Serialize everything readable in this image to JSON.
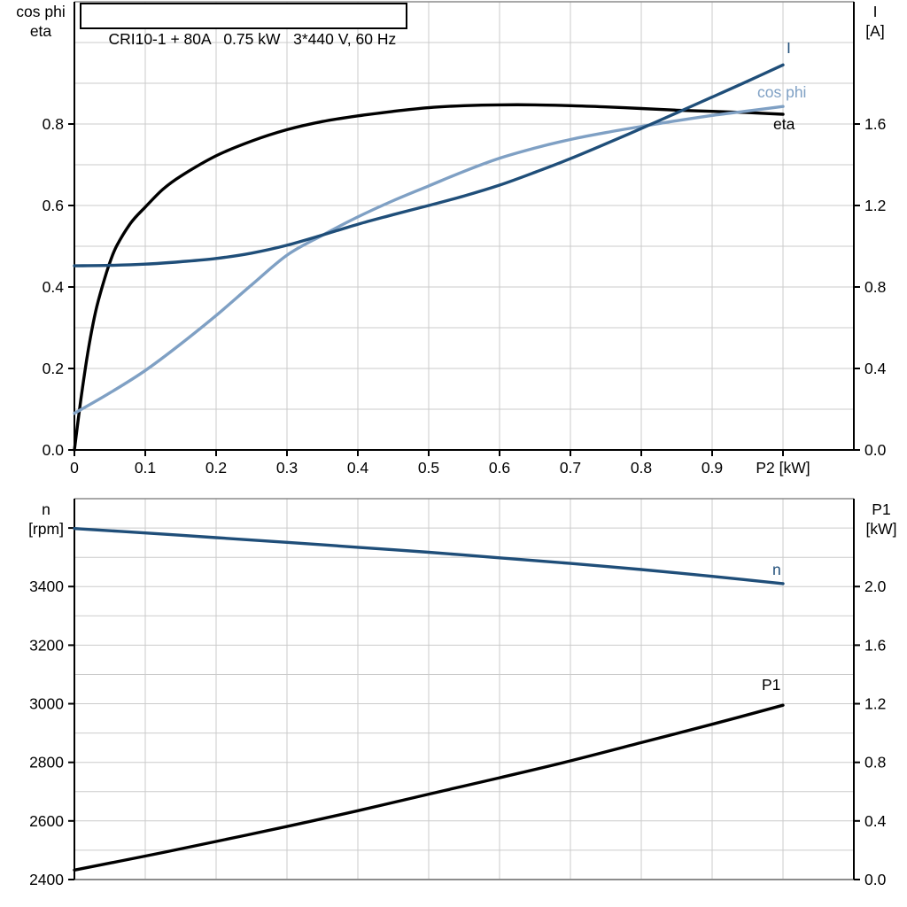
{
  "title": {
    "text": "CRI10-1 + 80A   0.75 kW   3*440 V, 60 Hz"
  },
  "colors": {
    "curve_dark_blue": "#1F4E79",
    "curve_light_blue": "#7FA0C4",
    "curve_black": "#000000",
    "grid": "#CBCBCB",
    "frame": "#8C8C8C",
    "axis": "#000000"
  },
  "chart_data": [
    {
      "type": "line",
      "id": "motor-efficiency-chart",
      "title": "CRI10-1 + 80A   0.75 kW   3*440 V, 60 Hz",
      "xlabel": "P2 [kW]",
      "x_axis": {
        "min": 0,
        "max": 1.1,
        "grid_step": 0.1,
        "ticks": [
          {
            "v": 0,
            "t": "0"
          },
          {
            "v": 0.1,
            "t": "0.1"
          },
          {
            "v": 0.2,
            "t": "0.2"
          },
          {
            "v": 0.3,
            "t": "0.3"
          },
          {
            "v": 0.4,
            "t": "0.4"
          },
          {
            "v": 0.5,
            "t": "0.5"
          },
          {
            "v": 0.6,
            "t": "0.6"
          },
          {
            "v": 0.7,
            "t": "0.7"
          },
          {
            "v": 0.8,
            "t": "0.8"
          },
          {
            "v": 0.9,
            "t": "0.9"
          },
          {
            "v": 1.0,
            "t": "P2 [kW]"
          }
        ]
      },
      "left_axis": {
        "title_lines": [
          "cos phi",
          "eta"
        ],
        "min": 0,
        "max": 1.1,
        "grid_step": 0.1,
        "ticks": [
          {
            "v": 0.0,
            "t": "0.0"
          },
          {
            "v": 0.2,
            "t": "0.2"
          },
          {
            "v": 0.4,
            "t": "0.4"
          },
          {
            "v": 0.6,
            "t": "0.6"
          },
          {
            "v": 0.8,
            "t": "0.8"
          }
        ]
      },
      "right_axis": {
        "title_lines": [
          "I",
          "[A]"
        ],
        "min": 0,
        "max": 2.2,
        "ticks": [
          {
            "v": 0.0,
            "t": "0.0"
          },
          {
            "v": 0.4,
            "t": "0.4"
          },
          {
            "v": 0.8,
            "t": "0.8"
          },
          {
            "v": 1.2,
            "t": "1.2"
          },
          {
            "v": 1.6,
            "t": "1.6"
          }
        ]
      },
      "series": [
        {
          "name": "eta",
          "label": "eta",
          "axis": "left",
          "color": "#000000",
          "points": [
            [
              0,
              0
            ],
            [
              0.01,
              0.135
            ],
            [
              0.02,
              0.25
            ],
            [
              0.03,
              0.34
            ],
            [
              0.04,
              0.405
            ],
            [
              0.05,
              0.46
            ],
            [
              0.06,
              0.502
            ],
            [
              0.08,
              0.558
            ],
            [
              0.1,
              0.596
            ],
            [
              0.125,
              0.64
            ],
            [
              0.15,
              0.672
            ],
            [
              0.2,
              0.722
            ],
            [
              0.25,
              0.758
            ],
            [
              0.3,
              0.786
            ],
            [
              0.35,
              0.806
            ],
            [
              0.4,
              0.82
            ],
            [
              0.45,
              0.831
            ],
            [
              0.5,
              0.84
            ],
            [
              0.55,
              0.845
            ],
            [
              0.6,
              0.847
            ],
            [
              0.65,
              0.847
            ],
            [
              0.7,
              0.845
            ],
            [
              0.75,
              0.842
            ],
            [
              0.8,
              0.838
            ],
            [
              0.85,
              0.834
            ],
            [
              0.9,
              0.831
            ],
            [
              0.95,
              0.828
            ],
            [
              1.0,
              0.824
            ]
          ]
        },
        {
          "name": "cos phi",
          "label": "cos phi",
          "axis": "left",
          "color": "#7FA0C4",
          "points": [
            [
              0,
              0.09
            ],
            [
              0.05,
              0.14
            ],
            [
              0.1,
              0.195
            ],
            [
              0.15,
              0.26
            ],
            [
              0.2,
              0.33
            ],
            [
              0.25,
              0.405
            ],
            [
              0.3,
              0.478
            ],
            [
              0.35,
              0.527
            ],
            [
              0.4,
              0.572
            ],
            [
              0.45,
              0.612
            ],
            [
              0.5,
              0.648
            ],
            [
              0.55,
              0.684
            ],
            [
              0.6,
              0.716
            ],
            [
              0.65,
              0.741
            ],
            [
              0.7,
              0.762
            ],
            [
              0.75,
              0.779
            ],
            [
              0.8,
              0.794
            ],
            [
              0.85,
              0.808
            ],
            [
              0.9,
              0.821
            ],
            [
              0.95,
              0.832
            ],
            [
              1.0,
              0.843
            ]
          ]
        },
        {
          "name": "I",
          "label": "I",
          "axis": "right",
          "color": "#1F4E79",
          "points": [
            [
              0,
              0.904
            ],
            [
              0.05,
              0.906
            ],
            [
              0.1,
              0.912
            ],
            [
              0.15,
              0.924
            ],
            [
              0.2,
              0.94
            ],
            [
              0.25,
              0.966
            ],
            [
              0.3,
              1.005
            ],
            [
              0.35,
              1.055
            ],
            [
              0.4,
              1.108
            ],
            [
              0.45,
              1.155
            ],
            [
              0.5,
              1.2
            ],
            [
              0.55,
              1.247
            ],
            [
              0.6,
              1.3
            ],
            [
              0.65,
              1.363
            ],
            [
              0.7,
              1.43
            ],
            [
              0.75,
              1.503
            ],
            [
              0.8,
              1.578
            ],
            [
              0.85,
              1.655
            ],
            [
              0.9,
              1.732
            ],
            [
              0.95,
              1.81
            ],
            [
              1.0,
              1.89
            ]
          ]
        }
      ]
    },
    {
      "type": "line",
      "id": "speed-power-chart",
      "xlabel": "",
      "x_axis": {
        "min": 0,
        "max": 1.1,
        "grid_step": 0.1,
        "ticks": []
      },
      "left_axis": {
        "title_lines": [
          "n",
          "[rpm]"
        ],
        "min": 2400,
        "max": 3700,
        "grid_step": 100,
        "ticks": [
          {
            "v": 2400,
            "t": "2400"
          },
          {
            "v": 2600,
            "t": "2600"
          },
          {
            "v": 2800,
            "t": "2800"
          },
          {
            "v": 3000,
            "t": "3000"
          },
          {
            "v": 3200,
            "t": "3200"
          },
          {
            "v": 3400,
            "t": "3400"
          },
          {
            "v": 3600,
            "t": ""
          }
        ]
      },
      "right_axis": {
        "title_lines": [
          "P1",
          "[kW]"
        ],
        "min": 0,
        "max": 2.6,
        "ticks": [
          {
            "v": 0.0,
            "t": "0.0"
          },
          {
            "v": 0.4,
            "t": "0.4"
          },
          {
            "v": 0.8,
            "t": "0.8"
          },
          {
            "v": 1.2,
            "t": "1.2"
          },
          {
            "v": 1.6,
            "t": "1.6"
          },
          {
            "v": 2.0,
            "t": "2.0"
          }
        ]
      },
      "series": [
        {
          "name": "n",
          "label": "n",
          "axis": "left",
          "color": "#1F4E79",
          "points": [
            [
              0,
              3598
            ],
            [
              0.1,
              3583
            ],
            [
              0.2,
              3567
            ],
            [
              0.3,
              3551
            ],
            [
              0.4,
              3534
            ],
            [
              0.5,
              3517
            ],
            [
              0.6,
              3498
            ],
            [
              0.7,
              3479
            ],
            [
              0.8,
              3458
            ],
            [
              0.9,
              3435
            ],
            [
              1.0,
              3410
            ]
          ]
        },
        {
          "name": "P1",
          "label": "P1",
          "axis": "right",
          "color": "#000000",
          "points": [
            [
              0,
              0.065
            ],
            [
              0.1,
              0.16
            ],
            [
              0.2,
              0.26
            ],
            [
              0.3,
              0.362
            ],
            [
              0.4,
              0.47
            ],
            [
              0.5,
              0.583
            ],
            [
              0.6,
              0.695
            ],
            [
              0.7,
              0.81
            ],
            [
              0.8,
              0.935
            ],
            [
              0.9,
              1.06
            ],
            [
              1.0,
              1.19
            ]
          ]
        }
      ]
    }
  ]
}
